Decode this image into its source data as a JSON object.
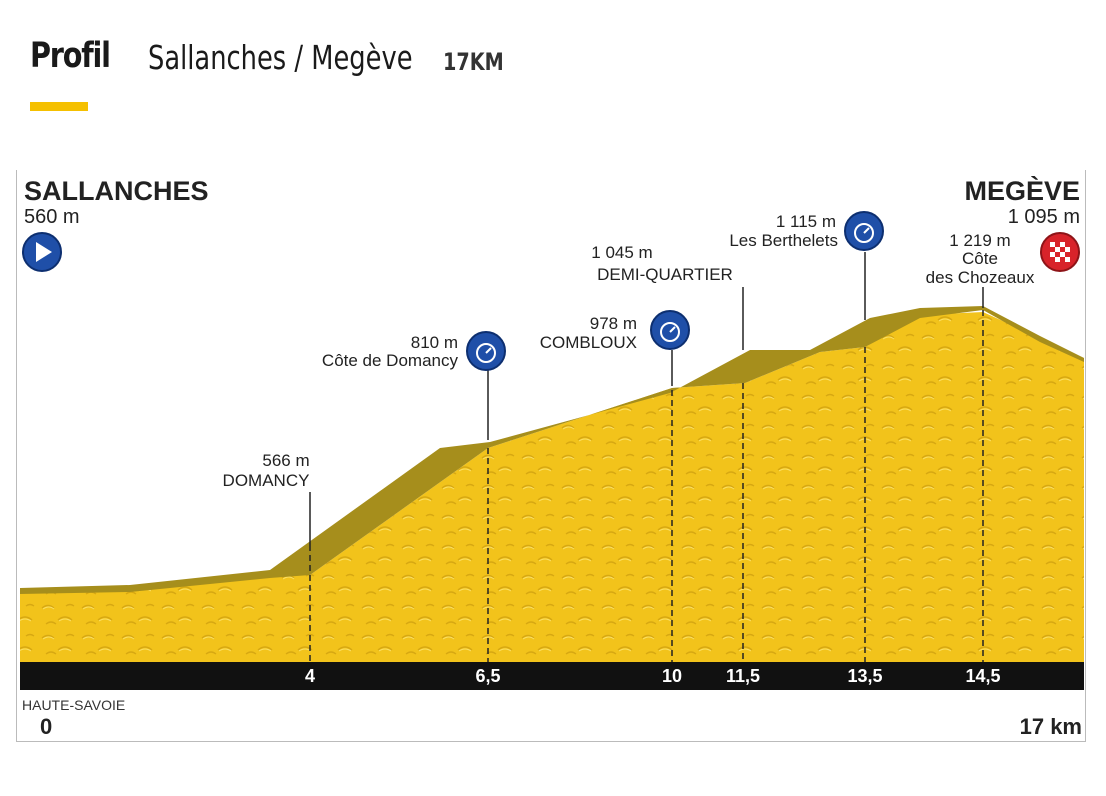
{
  "header": {
    "profil_label": "Profil",
    "route": "Sallanches / Megève",
    "distance": "17KM"
  },
  "colors": {
    "terrain": "#f2c31b",
    "terrain_top": "#a68e1c",
    "accent_bar": "#f5c000",
    "marker_blue": "#1f4fa8",
    "marker_red": "#d8232a",
    "km_bar": "#111111"
  },
  "start": {
    "town": "SALLANCHES",
    "altitude": "560 m",
    "icon": "play-icon"
  },
  "finish": {
    "town": "MEGÈVE",
    "altitude": "1 095 m",
    "icon": "checkered-flag-icon"
  },
  "region": "HAUTE-SAVOIE",
  "axis": {
    "start_label": "0",
    "end_label": "17 km"
  },
  "points": [
    {
      "km": "4",
      "altitude": "566 m",
      "name": "DOMANCY",
      "icon": ""
    },
    {
      "km": "6,5",
      "altitude": "810 m",
      "name": "Côte de Domancy",
      "icon": "stopwatch-icon"
    },
    {
      "km": "10",
      "altitude": "978 m",
      "name": "COMBLOUX",
      "icon": "stopwatch-icon"
    },
    {
      "km": "11,5",
      "altitude": "1 045 m",
      "name": "DEMI-QUARTIER",
      "icon": ""
    },
    {
      "km": "13,5",
      "altitude": "1 115 m",
      "name": "Les Berthelets",
      "icon": "stopwatch-icon"
    },
    {
      "km": "14,5",
      "altitude": "1 219 m",
      "name": "Côte des Chozeaux",
      "name_line1": "Côte",
      "name_line2": "des Chozeaux",
      "icon": ""
    }
  ]
}
